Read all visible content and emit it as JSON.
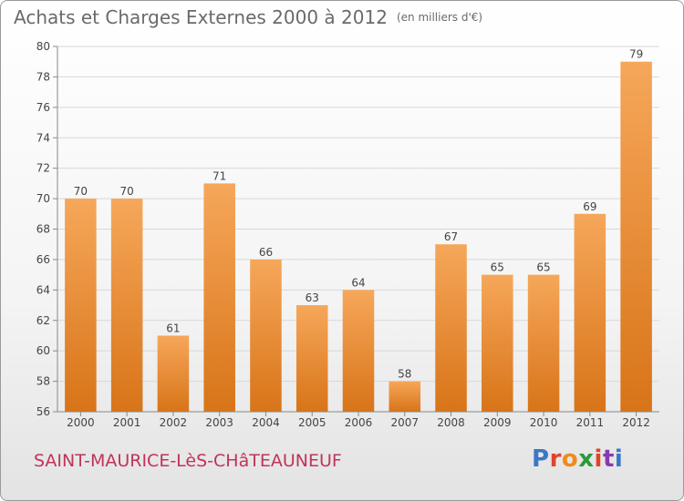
{
  "title": "Achats et Charges Externes 2000 à 2012",
  "unit_note": "(en milliers d'€)",
  "commune": "SAINT-MAURICE-LèS-CHâTEAUNEUF",
  "logo": {
    "text": "Proxiti",
    "colors": [
      "#3a78c8",
      "#e0452a",
      "#f08a1a",
      "#2a9a3a",
      "#e0452a",
      "#8a3ab0",
      "#3a78c8"
    ]
  },
  "colors": {
    "bar_top": "#f6a75a",
    "bar_bottom": "#d87418",
    "axis": "#888888",
    "grid": "#d8d8d8",
    "text": "#444444"
  },
  "chart_data": {
    "type": "bar",
    "categories": [
      "2000",
      "2001",
      "2002",
      "2003",
      "2004",
      "2005",
      "2006",
      "2007",
      "2008",
      "2009",
      "2010",
      "2011",
      "2012"
    ],
    "values": [
      70,
      70,
      61,
      71,
      66,
      63,
      64,
      58,
      67,
      65,
      65,
      69,
      79
    ],
    "title": "Achats et Charges Externes 2000 à 2012",
    "ylim": [
      56,
      80
    ],
    "yticks": [
      56,
      58,
      60,
      62,
      64,
      66,
      68,
      70,
      72,
      74,
      76,
      78,
      80
    ],
    "grid": true
  }
}
